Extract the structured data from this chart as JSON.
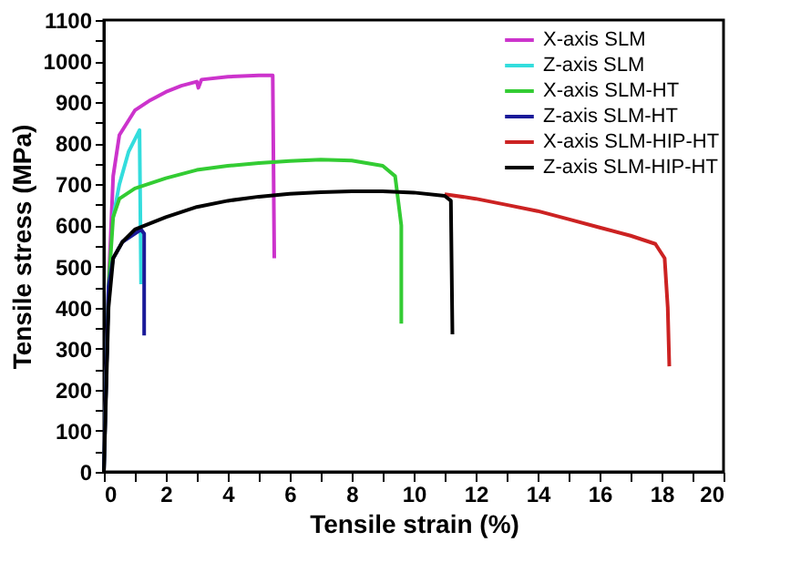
{
  "chart_data": {
    "type": "line",
    "xlabel": "Tensile strain (%)",
    "ylabel": "Tensile stress (MPa)",
    "xlim": [
      0,
      20
    ],
    "ylim": [
      0,
      1100
    ],
    "xticks": [
      0,
      {
        "value": 1,
        "label": null
      },
      2,
      {
        "value": 3,
        "label": null
      },
      4,
      {
        "value": 5,
        "label": null
      },
      6,
      {
        "value": 7,
        "label": null
      },
      8,
      {
        "value": 9,
        "label": null
      },
      10,
      {
        "value": 11,
        "label": null
      },
      12,
      {
        "value": 13,
        "label": null
      },
      14,
      {
        "value": 15,
        "label": null
      },
      16,
      {
        "value": 17,
        "label": null
      },
      18,
      {
        "value": 19,
        "label": null
      },
      20
    ],
    "yticks": [
      0,
      {
        "value": 50,
        "label": null
      },
      100,
      {
        "value": 150,
        "label": null
      },
      200,
      {
        "value": 250,
        "label": null
      },
      300,
      {
        "value": 350,
        "label": null
      },
      400,
      {
        "value": 450,
        "label": null
      },
      500,
      {
        "value": 550,
        "label": null
      },
      600,
      {
        "value": 650,
        "label": null
      },
      700,
      {
        "value": 750,
        "label": null
      },
      800,
      {
        "value": 850,
        "label": null
      },
      900,
      {
        "value": 950,
        "label": null
      },
      1000,
      {
        "value": 1050,
        "label": null
      },
      1100
    ],
    "grid": false,
    "legend": "top right",
    "marker": "none",
    "line_style": "solid",
    "series": [
      {
        "name": "X-axis SLM",
        "color": "#cc33cc",
        "x": [
          0,
          0.15,
          0.3,
          0.5,
          1,
          1.5,
          2,
          2.5,
          3,
          3.05,
          3.15,
          4,
          5,
          5.45,
          5.5
        ],
        "values": [
          0,
          450,
          720,
          820,
          880,
          905,
          925,
          940,
          950,
          935,
          955,
          962,
          965,
          965,
          520
        ]
      },
      {
        "name": "Z-axis SLM",
        "color": "#33dddd",
        "x": [
          0.3,
          0.5,
          0.8,
          1.15,
          1.2
        ],
        "values": [
          620,
          700,
          780,
          832,
          457
        ]
      },
      {
        "name": "X-axis SLM-HT",
        "color": "#33cc33",
        "x": [
          0,
          0.15,
          0.3,
          0.5,
          1,
          2,
          3,
          4,
          5,
          6,
          7,
          8,
          9,
          9.4,
          9.6,
          9.6
        ],
        "values": [
          0,
          450,
          620,
          665,
          690,
          715,
          735,
          745,
          752,
          757,
          760,
          758,
          745,
          720,
          600,
          361
        ]
      },
      {
        "name": "Z-axis SLM-HT",
        "color": "#1a1a99",
        "x": [
          0,
          0.15,
          0.3,
          0.6,
          1.2,
          1.3,
          1.3
        ],
        "values": [
          0,
          450,
          520,
          560,
          590,
          580,
          332
        ]
      },
      {
        "name": "X-axis SLM-HIP-HT",
        "color": "#cc2222",
        "x": [
          11,
          12,
          13,
          14,
          15,
          16,
          17,
          17.8,
          18.1,
          18.2,
          18.25
        ],
        "values": [
          676,
          665,
          650,
          635,
          615,
          595,
          575,
          555,
          520,
          400,
          257
        ]
      },
      {
        "name": "Z-axis SLM-HIP-HT",
        "color": "#000000",
        "x": [
          0,
          0.15,
          0.3,
          0.6,
          1,
          2,
          3,
          4,
          5,
          6,
          7,
          8,
          9,
          10,
          11,
          11.2,
          11.25
        ],
        "values": [
          0,
          400,
          520,
          560,
          590,
          620,
          645,
          660,
          670,
          677,
          681,
          683,
          683,
          680,
          672,
          660,
          335
        ]
      }
    ]
  }
}
